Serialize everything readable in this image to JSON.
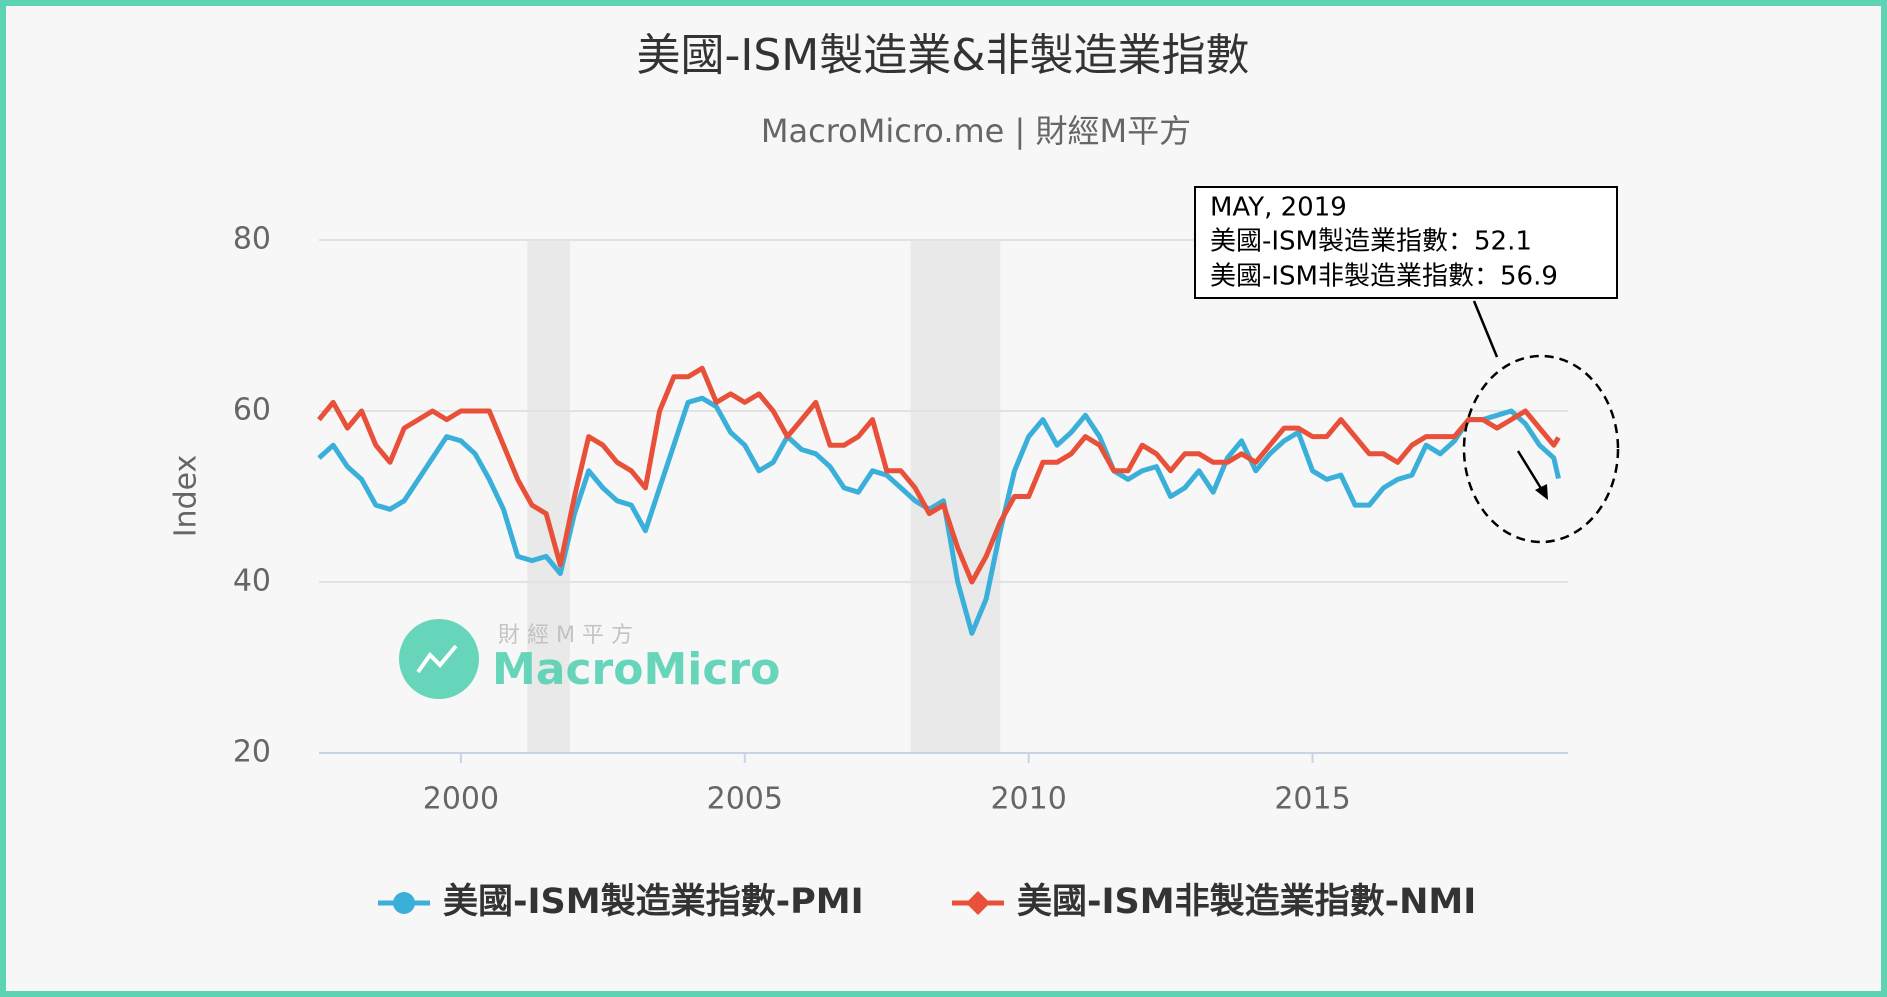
{
  "chart_data": {
    "type": "line",
    "title": "美國-ISM製造業&非製造業指數",
    "subtitle": "MacroMicro.me | 財經M平方",
    "y_label": "Index",
    "xlim": [
      1997.5,
      2019.5
    ],
    "xticks": [
      2000,
      2005,
      2010,
      2015
    ],
    "ylim": [
      20,
      80
    ],
    "yticks": [
      20,
      40,
      60,
      80
    ],
    "grid": true,
    "recessions": [
      [
        2001.17,
        2001.92
      ],
      [
        2007.92,
        2009.5
      ]
    ],
    "x": [
      1997.5,
      1997.75,
      1998,
      1998.25,
      1998.5,
      1998.75,
      1999,
      1999.25,
      1999.5,
      1999.75,
      2000,
      2000.25,
      2000.5,
      2000.75,
      2001,
      2001.25,
      2001.5,
      2001.75,
      2002,
      2002.25,
      2002.5,
      2002.75,
      2003,
      2003.25,
      2003.5,
      2003.75,
      2004,
      2004.25,
      2004.5,
      2004.75,
      2005,
      2005.25,
      2005.5,
      2005.75,
      2006,
      2006.25,
      2006.5,
      2006.75,
      2007,
      2007.25,
      2007.5,
      2007.75,
      2008,
      2008.25,
      2008.5,
      2008.75,
      2009,
      2009.25,
      2009.5,
      2009.75,
      2010,
      2010.25,
      2010.5,
      2010.75,
      2011,
      2011.25,
      2011.5,
      2011.75,
      2012,
      2012.25,
      2012.5,
      2012.75,
      2013,
      2013.25,
      2013.5,
      2013.75,
      2014,
      2014.25,
      2014.5,
      2014.75,
      2015,
      2015.25,
      2015.5,
      2015.75,
      2016,
      2016.25,
      2016.5,
      2016.75,
      2017,
      2017.25,
      2017.5,
      2017.75,
      2018,
      2018.25,
      2018.5,
      2018.75,
      2019,
      2019.25,
      2019.333
    ],
    "series": [
      {
        "name": "美國-ISM製造業指數-PMI",
        "color": "#3aafda",
        "marker": "circle",
        "values": [
          54.5,
          56,
          53.5,
          52,
          49,
          48.5,
          49.5,
          52,
          54.5,
          57,
          56.5,
          55,
          52,
          48.5,
          43,
          42.5,
          43,
          41,
          48,
          53,
          51,
          49.5,
          49,
          46,
          51,
          56,
          61,
          61.5,
          60.5,
          57.5,
          56,
          53,
          54,
          57,
          55.5,
          55,
          53.5,
          51,
          50.5,
          53,
          52.5,
          51,
          49.5,
          48.5,
          49.5,
          40,
          34,
          38,
          46,
          53,
          57,
          59,
          56,
          57.5,
          59.5,
          57,
          53,
          52,
          53,
          53.5,
          50,
          51,
          53,
          50.5,
          54.5,
          56.5,
          53,
          55,
          56.5,
          57.5,
          53,
          52,
          52.5,
          49,
          49,
          51,
          52,
          52.5,
          56,
          55,
          56.5,
          59,
          59,
          59.5,
          60,
          58.5,
          56,
          54.5,
          52.1
        ]
      },
      {
        "name": "美國-ISM非製造業指數-NMI",
        "color": "#e8503a",
        "marker": "diamond",
        "values": [
          59,
          61,
          58,
          60,
          56,
          54,
          58,
          59,
          60,
          59,
          60,
          60,
          60,
          56,
          52,
          49,
          48,
          42,
          50,
          57,
          56,
          54,
          53,
          51,
          60,
          64,
          64,
          65,
          61,
          62,
          61,
          62,
          60,
          57,
          59,
          61,
          56,
          56,
          57,
          59,
          53,
          53,
          51,
          48,
          49,
          44,
          40,
          43,
          47,
          50,
          50,
          54,
          54,
          55,
          57,
          56,
          53,
          53,
          56,
          55,
          53,
          55,
          55,
          54,
          54,
          55,
          54,
          56,
          58,
          58,
          57,
          57,
          59,
          57,
          55,
          55,
          54,
          56,
          57,
          57,
          57,
          59,
          59,
          58,
          59,
          60,
          58,
          56,
          56.9
        ]
      }
    ],
    "annotation": [
      "MAY, 2019",
      "美國-ISM製造業指數：52.1",
      "美國-ISM非製造業指數：56.9"
    ],
    "watermark": [
      "財 經 M 平 方",
      "MacroMicro"
    ]
  }
}
